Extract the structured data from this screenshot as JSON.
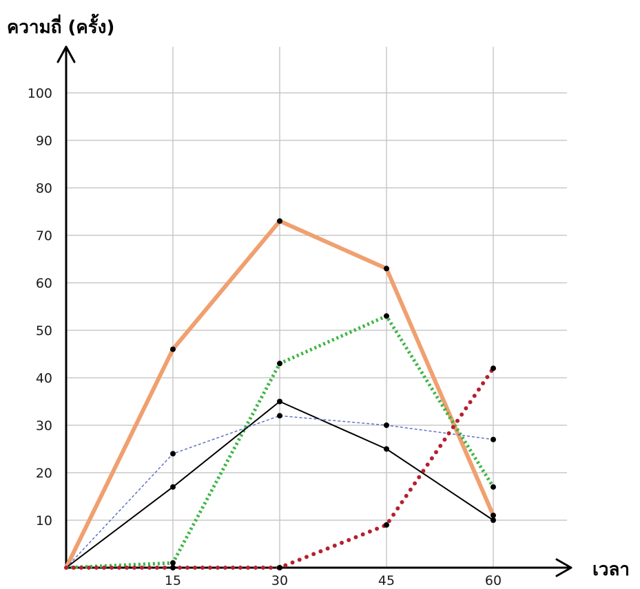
{
  "chart_data": {
    "type": "line",
    "xlabel": "เวลา",
    "ylabel": "ความถี่ (ครั้ง)",
    "x": [
      0,
      15,
      30,
      45,
      60
    ],
    "x_ticks": [
      "15",
      "30",
      "45",
      "60"
    ],
    "y_ticks": [
      "10",
      "20",
      "30",
      "40",
      "50",
      "60",
      "70",
      "80",
      "90",
      "100"
    ],
    "xlim": [
      0,
      70
    ],
    "ylim": [
      0,
      100
    ],
    "grid": true,
    "series": [
      {
        "values": [
          0,
          46,
          73,
          63,
          11
        ],
        "color": "#f0a070",
        "style": "solid-thick"
      },
      {
        "values": [
          0,
          1,
          43,
          53,
          17
        ],
        "color": "#3cb543",
        "style": "dotted"
      },
      {
        "values": [
          0,
          17,
          35,
          25,
          10
        ],
        "color": "#000000",
        "style": "solid-thin"
      },
      {
        "values": [
          0,
          24,
          32,
          30,
          27
        ],
        "color": "#5b6fc8",
        "style": "dashed"
      },
      {
        "values": [
          0,
          0,
          0,
          9,
          42
        ],
        "color": "#b5202e",
        "style": "dotted-thick"
      }
    ]
  }
}
